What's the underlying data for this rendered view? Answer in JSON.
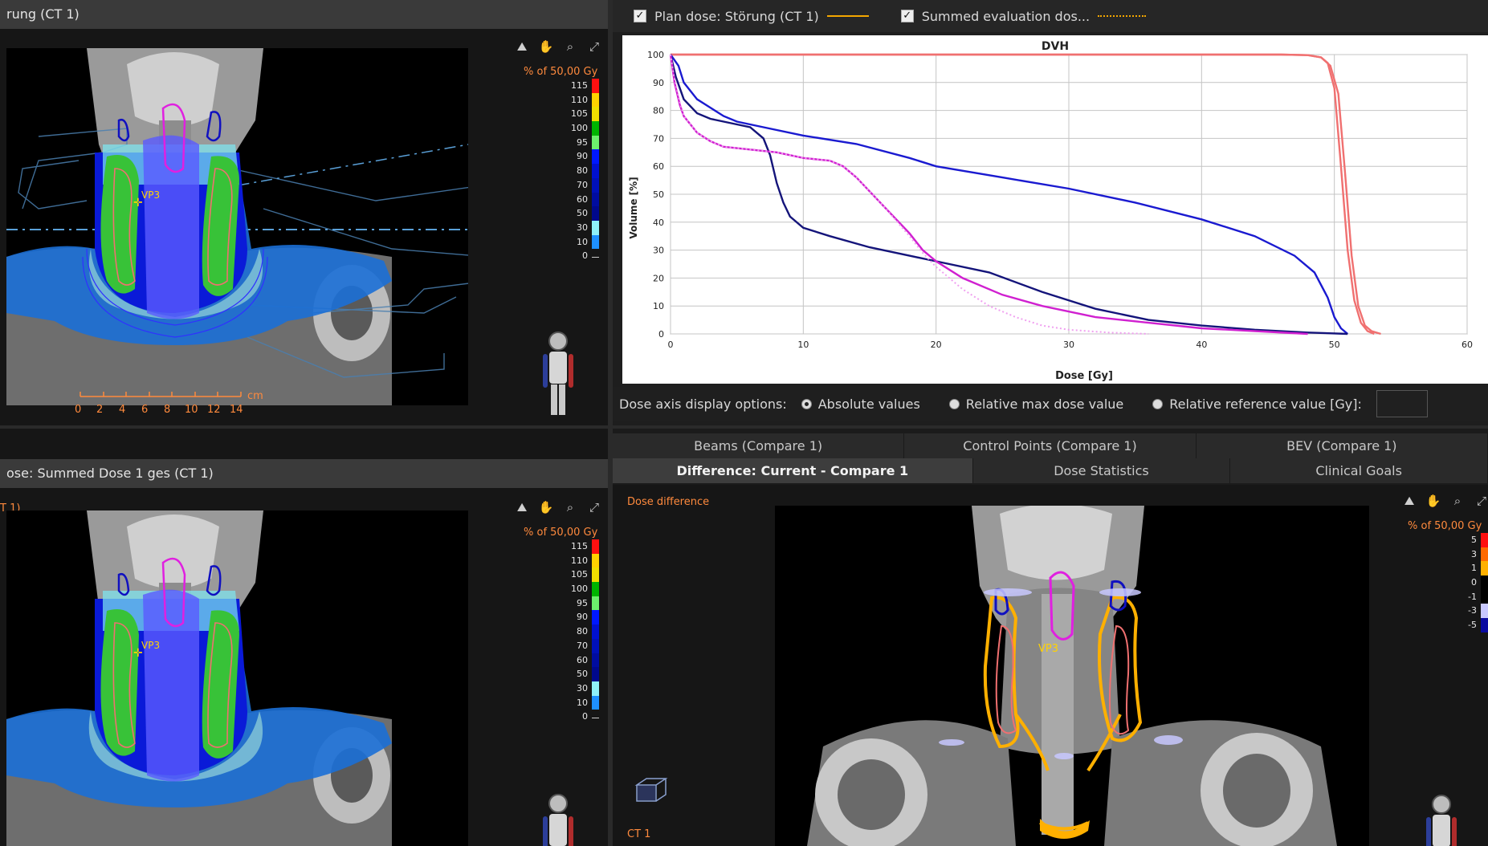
{
  "colors": {
    "accent_orange": "#ff8a3d",
    "red_curve": "#f07070",
    "blue_curve": "#1a1ad0",
    "navy_curve": "#14147a",
    "magenta_curve": "#d020d0",
    "orange_line": "#f4a700"
  },
  "top_left": {
    "title": "rung (CT 1)",
    "scale_title": "% of 50,00 Gy",
    "roi_label": "VP3",
    "ruler_labels": [
      "0",
      "2",
      "4",
      "6",
      "8",
      "10",
      "12",
      "14"
    ],
    "ruler_unit": "cm",
    "toolbar_icons": [
      "zoom-window-icon",
      "pan-hand-icon",
      "magnifier-icon",
      "fit-view-icon"
    ]
  },
  "bottom_left": {
    "title": "ose: Summed Dose 1 ges (CT 1)",
    "corner_label": "T 1)",
    "scale_title": "% of 50,00 Gy",
    "roi_label": "VP3"
  },
  "dose_scale": {
    "levels": [
      {
        "label": "115",
        "color": "#ff1010"
      },
      {
        "label": "110",
        "color": "#ffd200"
      },
      {
        "label": "105",
        "color": "#f0e000"
      },
      {
        "label": "100",
        "color": "#00b400"
      },
      {
        "label": "95",
        "color": "#6cf06c"
      },
      {
        "label": "90",
        "color": "#0018ff"
      },
      {
        "label": "80",
        "color": "#0010d0"
      },
      {
        "label": "70",
        "color": "#0010b8"
      },
      {
        "label": "60",
        "color": "#000ca0"
      },
      {
        "label": "50",
        "color": "#00088c"
      },
      {
        "label": "30",
        "color": "#8ff0f8"
      },
      {
        "label": "10",
        "color": "#1e90ff"
      },
      {
        "label": "0",
        "color": "#000000"
      }
    ]
  },
  "dvh": {
    "legend": {
      "plan_label": "Plan dose: Störung (CT 1)",
      "plan_checked": "✓",
      "summed_label": "Summed evaluation dos...",
      "summed_checked": "✓"
    },
    "dose_axis_label": "Dose axis display options:",
    "options": {
      "absolute": "Absolute values",
      "relative_max": "Relative max dose value",
      "relative_ref": "Relative reference value [Gy]:"
    }
  },
  "chart_data": {
    "type": "line",
    "title": "DVH",
    "xlabel": "Dose [Gy]",
    "ylabel": "Volume [%]",
    "xlim": [
      0,
      60
    ],
    "ylim": [
      0,
      100
    ],
    "xticks": [
      0,
      10,
      20,
      30,
      40,
      50,
      60
    ],
    "yticks": [
      0,
      10,
      20,
      30,
      40,
      50,
      60,
      70,
      80,
      90,
      100
    ],
    "grid": true,
    "series": [
      {
        "color": "#f07070",
        "style": "solid",
        "x": [
          0,
          46,
          48,
          49,
          49.5,
          50,
          50.5,
          51,
          51.5,
          52,
          52.5,
          53
        ],
        "y": [
          100,
          100,
          99.8,
          99,
          97,
          88,
          60,
          30,
          12,
          4,
          1,
          0
        ]
      },
      {
        "color": "#f07070",
        "style": "solid",
        "x": [
          0,
          46,
          48,
          49,
          49.7,
          50.3,
          50.8,
          51.3,
          51.8,
          52.3,
          52.8,
          53.5
        ],
        "y": [
          100,
          100,
          99.8,
          99,
          96,
          86,
          58,
          28,
          10,
          3,
          1,
          0
        ]
      },
      {
        "color": "#1a1ad0",
        "style": "solid",
        "x": [
          0,
          0.6,
          1,
          2,
          3,
          4,
          5,
          7,
          10,
          14,
          18,
          20,
          25,
          30,
          35,
          40,
          44,
          47,
          48.5,
          49.5,
          50,
          50.5,
          51
        ],
        "y": [
          100,
          96,
          90,
          84,
          81,
          78,
          76,
          74,
          71,
          68,
          63,
          60,
          56,
          52,
          47,
          41,
          35,
          28,
          22,
          13,
          6,
          2,
          0
        ]
      },
      {
        "color": "#14147a",
        "style": "solid",
        "x": [
          0,
          0.4,
          1,
          2,
          3,
          4,
          5,
          6,
          7,
          7.5,
          8,
          8.5,
          9,
          10,
          12,
          15,
          18,
          20,
          24,
          28,
          32,
          36,
          40,
          44,
          48,
          51
        ],
        "y": [
          100,
          92,
          84,
          79,
          77,
          76,
          75,
          74,
          70,
          64,
          54,
          47,
          42,
          38,
          35,
          31,
          28,
          26,
          22,
          15,
          9,
          5,
          3,
          1.5,
          0.5,
          0
        ]
      },
      {
        "color": "#d020d0",
        "style": "solid",
        "x": [
          0,
          0.3,
          0.7,
          1,
          1.5,
          2,
          3,
          4,
          6,
          8,
          10,
          12,
          13,
          14,
          16,
          18,
          19,
          20,
          22,
          25,
          28,
          32,
          36,
          40,
          44,
          48
        ],
        "y": [
          100,
          90,
          82,
          78,
          75,
          72,
          69,
          67,
          66,
          65,
          63,
          62,
          60,
          56,
          46,
          36,
          30,
          26,
          20,
          14,
          10,
          6,
          4,
          2,
          1,
          0
        ]
      },
      {
        "color": "#f0a0f0",
        "style": "dotted",
        "x": [
          0,
          0.3,
          0.7,
          1,
          1.5,
          2,
          3,
          4,
          6,
          8,
          10,
          12,
          13,
          14,
          16,
          18,
          19,
          20,
          22,
          24,
          26,
          28,
          30,
          33,
          36
        ],
        "y": [
          100,
          91,
          83,
          78,
          75,
          72,
          69,
          67,
          66,
          65,
          63,
          62,
          60,
          56,
          46,
          35,
          29,
          24,
          16,
          10,
          6,
          3,
          1.5,
          0.5,
          0
        ]
      }
    ]
  },
  "tabs": {
    "row1": [
      "Beams (Compare 1)",
      "Control Points (Compare 1)",
      "BEV (Compare 1)"
    ],
    "row2": [
      "Difference: Current - Compare 1",
      "Dose Statistics",
      "Clinical Goals"
    ]
  },
  "diff_view": {
    "title": "Dose difference",
    "scale_title": "% of 50,00 Gy",
    "ct_label": "CT 1",
    "roi_label": "VP3",
    "levels": [
      {
        "label": "5",
        "color": "#ff1010"
      },
      {
        "label": "3",
        "color": "#ff6a00"
      },
      {
        "label": "1",
        "color": "#ffb000"
      },
      {
        "label": "0",
        "color": "#000000"
      },
      {
        "label": "-1",
        "color": "#000000"
      },
      {
        "label": "-3",
        "color": "#c8c8ff"
      },
      {
        "label": "-5",
        "color": "#0a0aa0"
      }
    ]
  }
}
